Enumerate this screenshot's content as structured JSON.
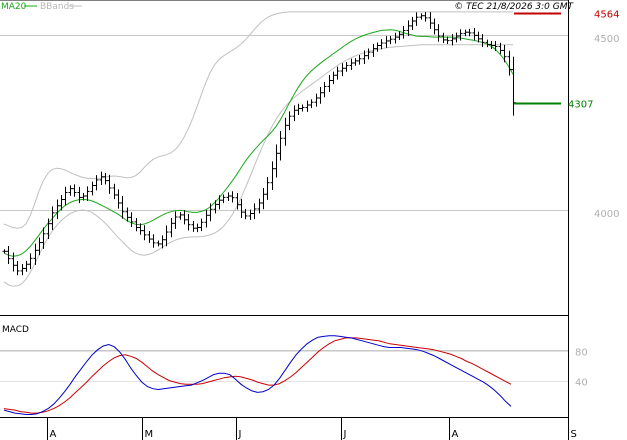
{
  "legend": {
    "ma20": "MA20",
    "bbands": "BBands"
  },
  "copyright": "© TEC 21/8/2026 3:0 GMT",
  "colors": {
    "ma": "#1aa81a",
    "bands": "#c0c0c0",
    "price": "#000000",
    "resistance": "#c00000",
    "support": "#008000",
    "macd": "#0000cc",
    "signal": "#cc0000",
    "grid": "#c8c8c8"
  },
  "chart_data": [
    {
      "type": "ohlc",
      "price_ylim": [
        3700,
        4600
      ],
      "y_ticks": [
        {
          "value": 4500,
          "label": "4500"
        },
        {
          "value": 4000,
          "label": "4000"
        }
      ],
      "x_ticks": [
        "A",
        "M",
        "J",
        "J",
        "A",
        "S"
      ],
      "levels": [
        {
          "name": "resistance",
          "value": 4564,
          "label": "4564"
        },
        {
          "name": "support",
          "value": 4307,
          "label": "4307"
        }
      ],
      "close": [
        3882,
        3861,
        3842,
        3826,
        3833,
        3845,
        3862,
        3885,
        3907,
        3932,
        3961,
        3992,
        4012,
        4030,
        4050,
        4061,
        4050,
        4036,
        4040,
        4053,
        4070,
        4086,
        4095,
        4084,
        4063,
        4043,
        4020,
        3995,
        3979,
        3966,
        3950,
        3941,
        3929,
        3917,
        3906,
        3903,
        3915,
        3937,
        3962,
        3980,
        3986,
        3972,
        3958,
        3948,
        3950,
        3965,
        3985,
        4002,
        4016,
        4028,
        4036,
        4040,
        4035,
        4015,
        3994,
        3983,
        3990,
        4003,
        4020,
        4045,
        4078,
        4118,
        4162,
        4205,
        4242,
        4268,
        4285,
        4290,
        4293,
        4300,
        4308,
        4320,
        4335,
        4353,
        4370,
        4385,
        4397,
        4405,
        4413,
        4420,
        4426,
        4432,
        4441,
        4451,
        4461,
        4470,
        4477,
        4483,
        4488,
        4494,
        4502,
        4513,
        4526,
        4540,
        4551,
        4555,
        4549,
        4534,
        4515,
        4497,
        4486,
        4484,
        4489,
        4497,
        4504,
        4508,
        4506,
        4499,
        4489,
        4479,
        4473,
        4470,
        4467,
        4456,
        4438,
        4401,
        4307
      ],
      "ma20": [
        3877,
        3871,
        3868,
        3869,
        3874,
        3883,
        3896,
        3912,
        3929,
        3946,
        3962,
        3976,
        3990,
        4003,
        4013,
        4021,
        4026,
        4029,
        4030,
        4029,
        4026,
        4021,
        4015,
        4009,
        4002,
        3995,
        3988,
        3979,
        3970,
        3963,
        3959,
        3958,
        3960,
        3965,
        3971,
        3978,
        3985,
        3991,
        3995,
        3998,
        3999,
        3998,
        3995,
        3993,
        3993,
        3996,
        4001,
        4009,
        4021,
        4034,
        4050,
        4066,
        4083,
        4101,
        4120,
        4139,
        4156,
        4171,
        4185,
        4198,
        4210,
        4223,
        4239,
        4258,
        4281,
        4305,
        4328,
        4349,
        4368,
        4384,
        4397,
        4408,
        4418,
        4428,
        4437,
        4446,
        4455,
        4464,
        4473,
        4481,
        4488,
        4494,
        4499,
        4503,
        4507,
        4510,
        4513,
        4514,
        4515,
        4514,
        4511,
        4507,
        4503,
        4500,
        4497,
        4496,
        4496,
        4495,
        4494,
        4494,
        4494,
        4494,
        4494,
        4493,
        4491,
        4489,
        4487,
        4485,
        4482,
        4479,
        4475,
        4468,
        4459,
        4446,
        4430,
        4410,
        4388
      ],
      "bb_upper": [
        3960,
        3955,
        3950,
        3948,
        3950,
        3960,
        3985,
        4018,
        4055,
        4085,
        4105,
        4116,
        4119,
        4118,
        4114,
        4108,
        4102,
        4097,
        4093,
        4091,
        4090,
        4090,
        4091,
        4094,
        4096,
        4097,
        4096,
        4094,
        4092,
        4093,
        4098,
        4108,
        4122,
        4135,
        4145,
        4151,
        4155,
        4158,
        4163,
        4172,
        4187,
        4207,
        4232,
        4262,
        4296,
        4331,
        4364,
        4393,
        4415,
        4430,
        4440,
        4448,
        4456,
        4464,
        4474,
        4486,
        4500,
        4515,
        4529,
        4541,
        4550,
        4556,
        4560,
        4563,
        4565,
        4566,
        4566,
        4566,
        4566,
        4566,
        4566,
        4566,
        4566,
        4566,
        4566,
        4566,
        4566,
        4566,
        4566,
        4566,
        4566,
        4566,
        4566,
        4566,
        4566,
        4566,
        4566,
        4566,
        4566,
        4566,
        4566,
        4566,
        4566,
        4566,
        4566,
        4566,
        4566,
        4566,
        4566,
        4566,
        4566,
        4566,
        4566,
        4566,
        4566,
        4566,
        4566,
        4566,
        4566,
        4566,
        4566,
        4566,
        4566,
        4566,
        4566,
        4566,
        4566
      ],
      "bb_lower": [
        3795,
        3786,
        3782,
        3783,
        3789,
        3802,
        3822,
        3846,
        3872,
        3898,
        3921,
        3940,
        3956,
        3969,
        3980,
        3989,
        3995,
        3999,
        4000,
        3998,
        3993,
        3985,
        3975,
        3963,
        3950,
        3936,
        3922,
        3909,
        3896,
        3885,
        3877,
        3872,
        3871,
        3873,
        3878,
        3885,
        3893,
        3901,
        3908,
        3914,
        3918,
        3921,
        3922,
        3923,
        3923,
        3924,
        3926,
        3929,
        3934,
        3942,
        3953,
        3968,
        3986,
        4008,
        4034,
        4063,
        4093,
        4124,
        4155,
        4184,
        4212,
        4237,
        4259,
        4278,
        4294,
        4308,
        4320,
        4330,
        4340,
        4349,
        4358,
        4367,
        4376,
        4386,
        4395,
        4404,
        4413,
        4421,
        4428,
        4434,
        4440,
        4445,
        4449,
        4453,
        4456,
        4459,
        4461,
        4463,
        4465,
        4466,
        4467,
        4468,
        4469,
        4470,
        4471,
        4472,
        4472,
        4472,
        4472,
        4472,
        4472,
        4472,
        4472,
        4472,
        4472,
        4472,
        4472,
        4472,
        4472,
        4472,
        4472,
        4472,
        4472,
        4472,
        4472,
        4472,
        4472
      ]
    },
    {
      "type": "line",
      "title": "MACD",
      "ylim": [
        -8,
        125
      ],
      "y_ticks": [
        {
          "value": 80,
          "label": "80"
        },
        {
          "value": 40,
          "label": "40"
        }
      ],
      "series": [
        {
          "key": "macd",
          "values": [
            0,
            -2,
            -4,
            -5,
            -6,
            -6,
            -5,
            -2,
            2,
            8,
            16,
            25,
            35,
            46,
            56,
            66,
            75,
            82,
            87,
            89,
            86,
            79,
            69,
            57,
            47,
            38,
            32,
            29,
            28,
            29,
            30,
            31,
            32,
            33,
            34,
            37,
            40,
            44,
            48,
            50,
            50,
            48,
            42,
            35,
            30,
            26,
            24,
            25,
            28,
            34,
            43,
            54,
            65,
            75,
            83,
            90,
            95,
            99,
            100,
            101,
            101,
            100,
            99,
            98,
            96,
            94,
            92,
            90,
            88,
            86,
            85,
            85,
            85,
            84,
            83,
            82,
            80,
            77,
            74,
            70,
            66,
            62,
            58,
            54,
            50,
            46,
            42,
            38,
            33,
            27,
            20,
            12,
            5
          ],
          "ma_values": [
            2,
            1,
            0,
            -2,
            -3,
            -4,
            -4,
            -3,
            -1,
            2,
            6,
            11,
            17,
            24,
            31,
            38,
            46,
            53,
            60,
            66,
            71,
            74,
            75,
            73,
            70,
            65,
            59,
            53,
            48,
            44,
            40,
            38,
            36,
            35,
            35,
            35,
            36,
            38,
            40,
            42,
            44,
            45,
            46,
            45,
            43,
            41,
            38,
            36,
            34,
            34,
            36,
            40,
            45,
            51,
            58,
            65,
            72,
            79,
            85,
            90,
            94,
            96,
            98,
            98,
            98,
            97,
            96,
            95,
            94,
            92,
            90,
            89,
            88,
            87,
            86,
            85,
            84,
            83,
            82,
            80,
            78,
            76,
            73,
            70,
            66,
            63,
            59,
            55,
            51,
            47,
            43,
            39,
            35
          ]
        }
      ]
    }
  ]
}
